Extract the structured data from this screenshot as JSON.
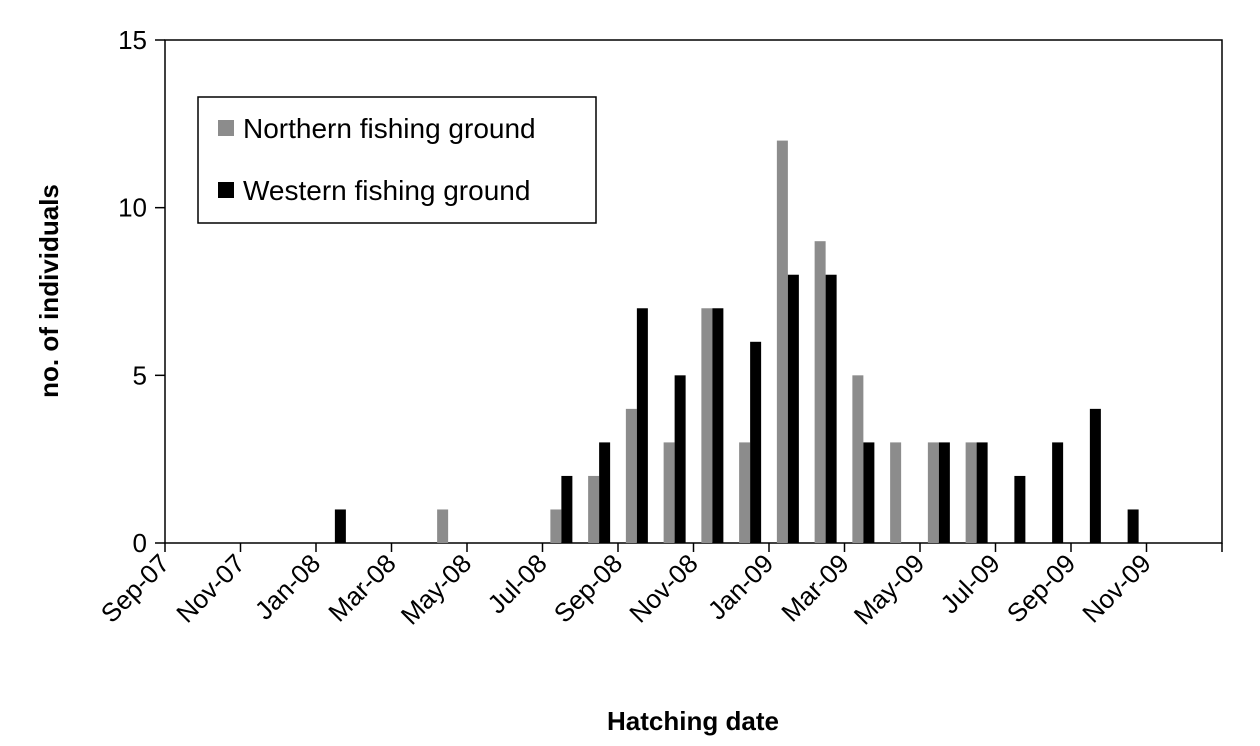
{
  "chart_data": {
    "type": "bar",
    "title": "",
    "xlabel": "Hatching date",
    "ylabel": "no. of individuals",
    "ylim": [
      0,
      15
    ],
    "yticks": [
      0,
      5,
      10,
      15
    ],
    "grid": false,
    "legend_position": "top-left",
    "categories": [
      "Sep-07",
      "Oct-07",
      "Nov-07",
      "Dec-07",
      "Jan-08",
      "Feb-08",
      "Mar-08",
      "Apr-08",
      "May-08",
      "Jun-08",
      "Jul-08",
      "Aug-08",
      "Sep-08",
      "Oct-08",
      "Nov-08",
      "Dec-08",
      "Jan-09",
      "Feb-09",
      "Mar-09",
      "Apr-09",
      "May-09",
      "Jun-09",
      "Jul-09",
      "Aug-09",
      "Sep-09",
      "Oct-09",
      "Nov-09",
      "Dec-09"
    ],
    "tick_labels": [
      "Sep-07",
      "Nov-07",
      "Jan-08",
      "Mar-08",
      "May-08",
      "Jul-08",
      "Sep-08",
      "Nov-08",
      "Jan-09",
      "Mar-09",
      "May-09",
      "Jul-09",
      "Sep-09",
      "Nov-09"
    ],
    "series": [
      {
        "name": "Northern fishing ground",
        "color": "#8c8c8c",
        "values": [
          0,
          0,
          0,
          0,
          0,
          0,
          0,
          1,
          0,
          0,
          1,
          2,
          4,
          3,
          7,
          3,
          12,
          9,
          5,
          3,
          3,
          3,
          0,
          0,
          0,
          0,
          0,
          0
        ]
      },
      {
        "name": "Western fishing ground",
        "color": "#000000",
        "values": [
          0,
          0,
          0,
          0,
          1,
          0,
          0,
          0,
          0,
          0,
          2,
          3,
          7,
          5,
          7,
          6,
          8,
          8,
          3,
          0,
          3,
          3,
          2,
          3,
          4,
          1,
          0,
          0
        ]
      }
    ]
  }
}
